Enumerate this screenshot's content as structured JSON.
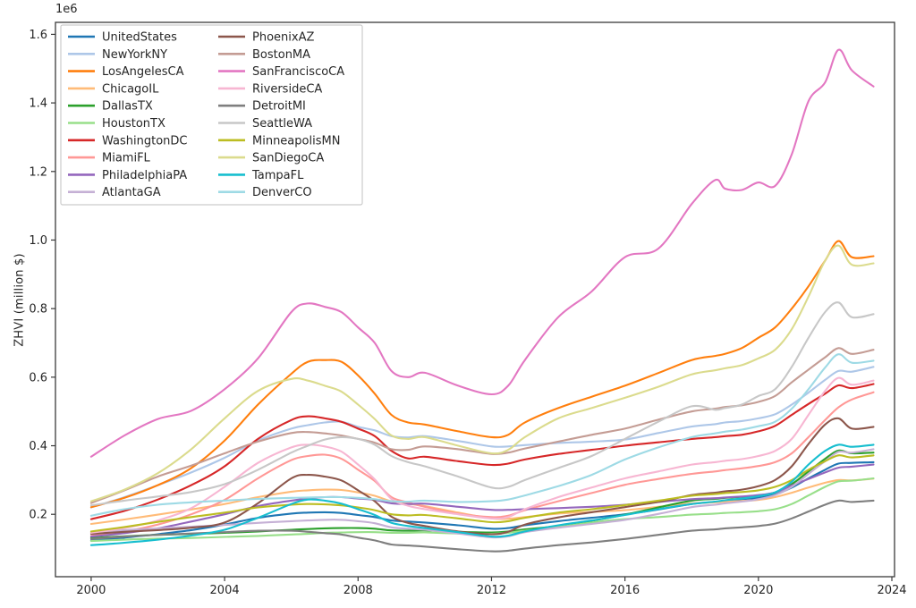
{
  "figure": {
    "ylabel": "ZHVI  (million $)",
    "y_offset_label": "1e6",
    "background": "#ffffff",
    "spine_color": "#3a3a3a",
    "text_color": "#262626",
    "legend_border_color": "#cccccc"
  },
  "chart_data": {
    "type": "line",
    "title": "",
    "xlabel": "",
    "ylabel": "ZHVI (million $)",
    "y_unit_offset": "1e6",
    "grid": false,
    "legend_position": "upper left",
    "legend_columns": 2,
    "xlim": [
      1998.93,
      2024.08
    ],
    "ylim": [
      0.018,
      1.635
    ],
    "xticks": [
      2000,
      2004,
      2008,
      2012,
      2016,
      2020,
      2024
    ],
    "yticks": [
      0.2,
      0.4,
      0.6,
      0.8,
      1.0,
      1.2,
      1.4,
      1.6
    ],
    "x": [
      2000,
      2001,
      2002,
      2003,
      2004,
      2005,
      2006,
      2006.5,
      2007,
      2007.5,
      2008,
      2008.5,
      2009,
      2009.5,
      2010,
      2011,
      2012,
      2012.5,
      2013,
      2014,
      2015,
      2016,
      2017,
      2018,
      2018.7,
      2019,
      2019.5,
      2020,
      2020.5,
      2021,
      2021.5,
      2022,
      2022.4,
      2022.8,
      2023.45
    ],
    "series": [
      {
        "name": "UnitedStates",
        "color": "#1f77b4",
        "values": [
          0.124,
          0.132,
          0.142,
          0.154,
          0.17,
          0.19,
          0.202,
          0.205,
          0.206,
          0.204,
          0.198,
          0.192,
          0.182,
          0.179,
          0.176,
          0.168,
          0.158,
          0.16,
          0.168,
          0.18,
          0.19,
          0.2,
          0.214,
          0.23,
          0.236,
          0.24,
          0.244,
          0.248,
          0.258,
          0.278,
          0.305,
          0.33,
          0.348,
          0.35,
          0.352
        ]
      },
      {
        "name": "NewYorkNY",
        "color": "#aec7e8",
        "values": [
          0.22,
          0.25,
          0.285,
          0.322,
          0.365,
          0.415,
          0.45,
          0.46,
          0.468,
          0.47,
          0.455,
          0.445,
          0.428,
          0.424,
          0.428,
          0.414,
          0.398,
          0.398,
          0.402,
          0.408,
          0.412,
          0.418,
          0.437,
          0.456,
          0.463,
          0.468,
          0.472,
          0.48,
          0.492,
          0.52,
          0.555,
          0.592,
          0.618,
          0.616,
          0.63
        ]
      },
      {
        "name": "LosAngelesCA",
        "color": "#ff7f0e",
        "values": [
          0.221,
          0.248,
          0.285,
          0.335,
          0.415,
          0.52,
          0.61,
          0.645,
          0.65,
          0.645,
          0.605,
          0.552,
          0.49,
          0.468,
          0.462,
          0.442,
          0.425,
          0.432,
          0.468,
          0.51,
          0.543,
          0.575,
          0.612,
          0.65,
          0.662,
          0.668,
          0.685,
          0.715,
          0.745,
          0.8,
          0.865,
          0.94,
          0.997,
          0.95,
          0.953
        ]
      },
      {
        "name": "ChicagoIL",
        "color": "#ffbb78",
        "values": [
          0.172,
          0.185,
          0.199,
          0.214,
          0.23,
          0.25,
          0.266,
          0.27,
          0.272,
          0.271,
          0.264,
          0.254,
          0.238,
          0.231,
          0.224,
          0.205,
          0.188,
          0.187,
          0.192,
          0.202,
          0.207,
          0.212,
          0.222,
          0.232,
          0.235,
          0.237,
          0.239,
          0.242,
          0.25,
          0.263,
          0.278,
          0.292,
          0.3,
          0.299,
          0.304
        ]
      },
      {
        "name": "DallasTX",
        "color": "#2ca02c",
        "values": [
          0.131,
          0.136,
          0.14,
          0.143,
          0.146,
          0.15,
          0.155,
          0.157,
          0.159,
          0.16,
          0.16,
          0.158,
          0.153,
          0.152,
          0.153,
          0.149,
          0.147,
          0.15,
          0.156,
          0.166,
          0.181,
          0.199,
          0.22,
          0.24,
          0.245,
          0.248,
          0.251,
          0.255,
          0.264,
          0.288,
          0.325,
          0.362,
          0.386,
          0.378,
          0.38
        ]
      },
      {
        "name": "HoustonTX",
        "color": "#98df8a",
        "values": [
          0.122,
          0.126,
          0.129,
          0.131,
          0.134,
          0.137,
          0.141,
          0.143,
          0.146,
          0.147,
          0.148,
          0.148,
          0.146,
          0.146,
          0.147,
          0.144,
          0.143,
          0.146,
          0.152,
          0.163,
          0.176,
          0.186,
          0.192,
          0.199,
          0.202,
          0.204,
          0.206,
          0.209,
          0.215,
          0.23,
          0.255,
          0.28,
          0.296,
          0.298,
          0.305
        ]
      },
      {
        "name": "WashingtonDC",
        "color": "#d62728",
        "values": [
          0.186,
          0.21,
          0.243,
          0.285,
          0.34,
          0.42,
          0.475,
          0.486,
          0.48,
          0.47,
          0.45,
          0.428,
          0.385,
          0.363,
          0.368,
          0.355,
          0.344,
          0.348,
          0.36,
          0.376,
          0.388,
          0.4,
          0.41,
          0.42,
          0.425,
          0.428,
          0.432,
          0.442,
          0.458,
          0.49,
          0.522,
          0.552,
          0.576,
          0.568,
          0.58
        ]
      },
      {
        "name": "MiamiFL",
        "color": "#ff9896",
        "values": [
          0.137,
          0.15,
          0.17,
          0.2,
          0.242,
          0.305,
          0.358,
          0.37,
          0.374,
          0.362,
          0.33,
          0.297,
          0.25,
          0.235,
          0.222,
          0.202,
          0.192,
          0.196,
          0.212,
          0.238,
          0.262,
          0.286,
          0.303,
          0.318,
          0.325,
          0.329,
          0.334,
          0.341,
          0.352,
          0.378,
          0.425,
          0.475,
          0.512,
          0.535,
          0.556
        ]
      },
      {
        "name": "PhiladelphiaPA",
        "color": "#9467bd",
        "values": [
          0.135,
          0.145,
          0.159,
          0.179,
          0.2,
          0.224,
          0.24,
          0.246,
          0.25,
          0.25,
          0.246,
          0.242,
          0.232,
          0.23,
          0.231,
          0.222,
          0.213,
          0.213,
          0.215,
          0.218,
          0.222,
          0.228,
          0.236,
          0.244,
          0.247,
          0.249,
          0.252,
          0.256,
          0.264,
          0.284,
          0.303,
          0.322,
          0.336,
          0.339,
          0.345
        ]
      },
      {
        "name": "AtlantaGA",
        "color": "#c5b0d5",
        "values": [
          0.147,
          0.154,
          0.159,
          0.164,
          0.169,
          0.175,
          0.18,
          0.182,
          0.184,
          0.184,
          0.18,
          0.174,
          0.162,
          0.158,
          0.155,
          0.144,
          0.133,
          0.136,
          0.148,
          0.161,
          0.172,
          0.184,
          0.201,
          0.221,
          0.228,
          0.232,
          0.237,
          0.244,
          0.256,
          0.28,
          0.318,
          0.355,
          0.382,
          0.38,
          0.39
        ]
      },
      {
        "name": "PhoenixAZ",
        "color": "#8c564b",
        "values": [
          0.143,
          0.149,
          0.154,
          0.161,
          0.176,
          0.232,
          0.305,
          0.315,
          0.31,
          0.299,
          0.27,
          0.238,
          0.193,
          0.175,
          0.166,
          0.15,
          0.142,
          0.149,
          0.17,
          0.191,
          0.206,
          0.221,
          0.236,
          0.256,
          0.263,
          0.267,
          0.272,
          0.282,
          0.3,
          0.34,
          0.405,
          0.462,
          0.48,
          0.45,
          0.455
        ]
      },
      {
        "name": "BostonMA",
        "color": "#c49c94",
        "values": [
          0.233,
          0.27,
          0.31,
          0.342,
          0.378,
          0.412,
          0.437,
          0.44,
          0.436,
          0.43,
          0.42,
          0.409,
          0.39,
          0.388,
          0.398,
          0.39,
          0.376,
          0.38,
          0.392,
          0.412,
          0.432,
          0.45,
          0.476,
          0.5,
          0.508,
          0.513,
          0.518,
          0.528,
          0.545,
          0.585,
          0.622,
          0.658,
          0.685,
          0.668,
          0.68
        ]
      },
      {
        "name": "SanFranciscoCA",
        "color": "#e377c2",
        "values": [
          0.368,
          0.43,
          0.478,
          0.502,
          0.565,
          0.655,
          0.79,
          0.815,
          0.805,
          0.79,
          0.745,
          0.7,
          0.618,
          0.6,
          0.613,
          0.575,
          0.55,
          0.575,
          0.65,
          0.775,
          0.85,
          0.95,
          0.975,
          1.105,
          1.175,
          1.15,
          1.146,
          1.168,
          1.158,
          1.25,
          1.405,
          1.46,
          1.555,
          1.495,
          1.448
        ]
      },
      {
        "name": "RiversideCA",
        "color": "#f7b6d2",
        "values": [
          0.146,
          0.16,
          0.182,
          0.218,
          0.28,
          0.35,
          0.395,
          0.403,
          0.398,
          0.383,
          0.345,
          0.302,
          0.245,
          0.225,
          0.215,
          0.2,
          0.188,
          0.192,
          0.215,
          0.25,
          0.278,
          0.305,
          0.325,
          0.345,
          0.352,
          0.356,
          0.361,
          0.37,
          0.385,
          0.42,
          0.49,
          0.56,
          0.598,
          0.578,
          0.59
        ]
      },
      {
        "name": "DetroitMI",
        "color": "#7f7f7f",
        "values": [
          0.128,
          0.135,
          0.14,
          0.144,
          0.148,
          0.152,
          0.152,
          0.149,
          0.145,
          0.141,
          0.132,
          0.124,
          0.112,
          0.109,
          0.106,
          0.098,
          0.092,
          0.094,
          0.1,
          0.11,
          0.118,
          0.128,
          0.14,
          0.152,
          0.156,
          0.159,
          0.162,
          0.166,
          0.173,
          0.188,
          0.208,
          0.228,
          0.24,
          0.236,
          0.24
        ]
      },
      {
        "name": "SeattleWA",
        "color": "#c7c7c7",
        "values": [
          0.226,
          0.24,
          0.252,
          0.265,
          0.288,
          0.33,
          0.38,
          0.4,
          0.418,
          0.425,
          0.42,
          0.403,
          0.37,
          0.352,
          0.34,
          0.31,
          0.278,
          0.28,
          0.3,
          0.335,
          0.37,
          0.42,
          0.47,
          0.515,
          0.505,
          0.51,
          0.52,
          0.545,
          0.565,
          0.63,
          0.715,
          0.79,
          0.818,
          0.775,
          0.784
        ]
      },
      {
        "name": "MinneapolisMN",
        "color": "#bcbd22",
        "values": [
          0.15,
          0.163,
          0.178,
          0.192,
          0.205,
          0.22,
          0.228,
          0.23,
          0.229,
          0.226,
          0.22,
          0.212,
          0.2,
          0.197,
          0.198,
          0.188,
          0.177,
          0.18,
          0.19,
          0.205,
          0.215,
          0.227,
          0.24,
          0.254,
          0.259,
          0.262,
          0.265,
          0.27,
          0.28,
          0.3,
          0.33,
          0.355,
          0.372,
          0.366,
          0.372
        ]
      },
      {
        "name": "SanDiegoCA",
        "color": "#dbdb8d",
        "values": [
          0.238,
          0.272,
          0.32,
          0.39,
          0.48,
          0.56,
          0.595,
          0.59,
          0.575,
          0.558,
          0.52,
          0.478,
          0.43,
          0.42,
          0.425,
          0.4,
          0.378,
          0.388,
          0.425,
          0.48,
          0.51,
          0.54,
          0.572,
          0.608,
          0.62,
          0.626,
          0.635,
          0.655,
          0.68,
          0.74,
          0.835,
          0.94,
          0.984,
          0.928,
          0.932
        ]
      },
      {
        "name": "TampaFL",
        "color": "#17becf",
        "values": [
          0.11,
          0.117,
          0.126,
          0.138,
          0.155,
          0.19,
          0.23,
          0.243,
          0.24,
          0.231,
          0.215,
          0.198,
          0.175,
          0.166,
          0.16,
          0.148,
          0.135,
          0.138,
          0.15,
          0.168,
          0.182,
          0.198,
          0.215,
          0.23,
          0.237,
          0.241,
          0.246,
          0.253,
          0.264,
          0.295,
          0.345,
          0.385,
          0.403,
          0.397,
          0.403
        ]
      },
      {
        "name": "DenverCO",
        "color": "#9edae5",
        "values": [
          0.196,
          0.215,
          0.228,
          0.235,
          0.24,
          0.245,
          0.248,
          0.249,
          0.25,
          0.25,
          0.248,
          0.244,
          0.238,
          0.237,
          0.24,
          0.236,
          0.238,
          0.243,
          0.255,
          0.282,
          0.315,
          0.36,
          0.395,
          0.425,
          0.436,
          0.441,
          0.447,
          0.457,
          0.47,
          0.508,
          0.565,
          0.628,
          0.667,
          0.642,
          0.648
        ]
      }
    ]
  }
}
